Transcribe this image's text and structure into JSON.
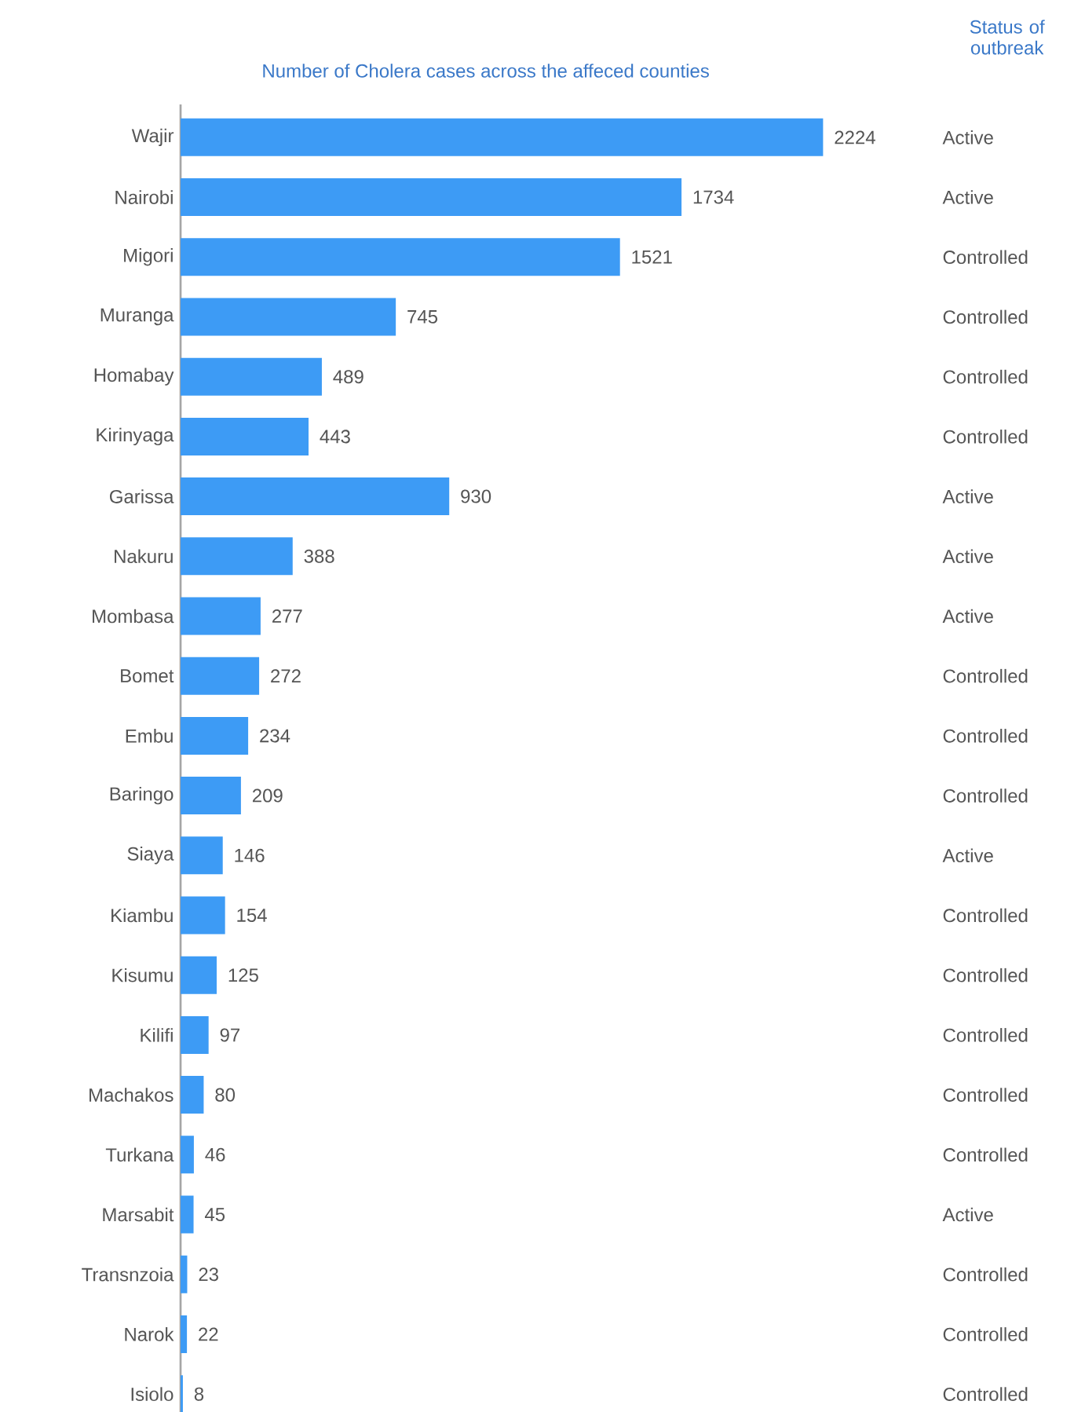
{
  "chart_data": {
    "type": "bar",
    "orientation": "horizontal",
    "title": "Number of Cholera cases across the affeced counties",
    "categories": [
      "Wajir",
      "Nairobi",
      "Migori",
      "Muranga",
      "Homabay",
      "Kirinyaga",
      "Garissa",
      "Nakuru",
      "Mombasa",
      "Bomet",
      "Embu",
      "Baringo",
      "Siaya",
      "Kiambu",
      "Kisumu",
      "Kilifi",
      "Machakos",
      "Turkana",
      "Marsabit",
      "Transnzoia",
      "Narok",
      "Isiolo"
    ],
    "values": [
      2224,
      1734,
      1521,
      745,
      489,
      443,
      930,
      388,
      277,
      272,
      234,
      209,
      146,
      154,
      125,
      97,
      80,
      46,
      45,
      23,
      22,
      8
    ],
    "color": "#3d9bf5",
    "data_labels": true,
    "tick_labels": "y",
    "grid": false,
    "annotations": [
      "Status of outbreak",
      "Active",
      "Active",
      "Controlled",
      "Controlled",
      "Controlled",
      "Controlled",
      "Active",
      "Active",
      "Active",
      "Controlled",
      "Controlled",
      "Controlled",
      "Active",
      "Controlled",
      "Controlled",
      "Controlled",
      "Controlled",
      "Controlled",
      "Active",
      "Controlled",
      "Controlled",
      "Controlled"
    ]
  }
}
